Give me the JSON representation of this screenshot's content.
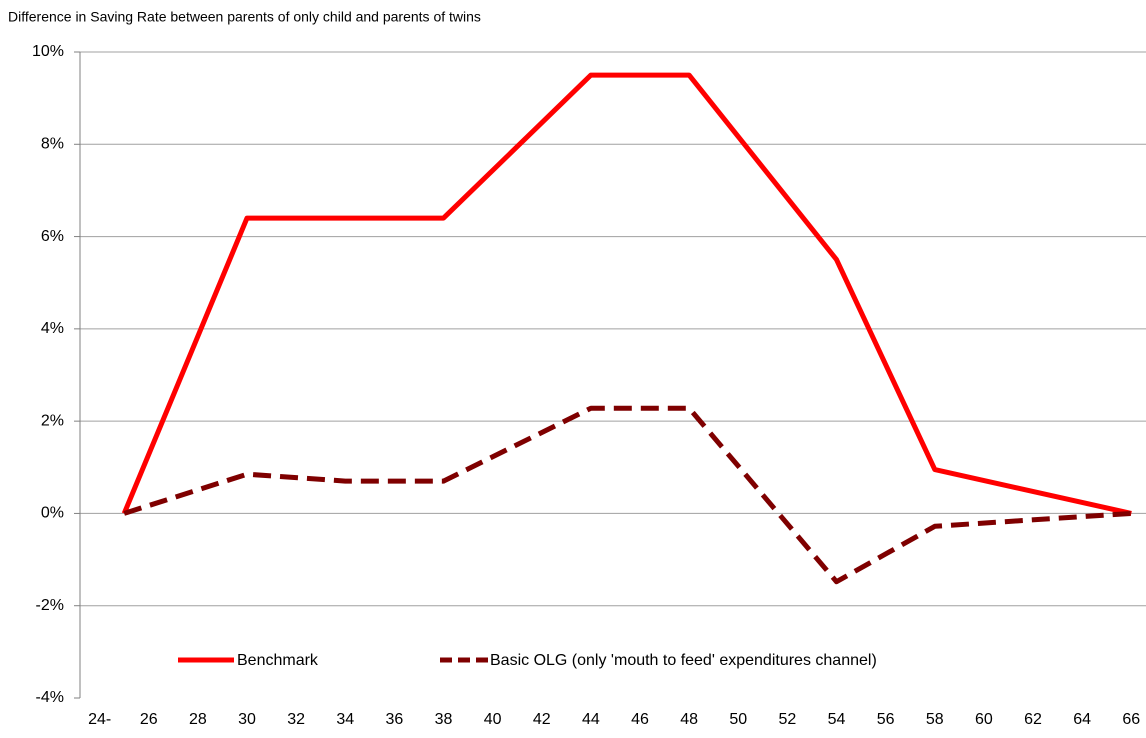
{
  "chart_data": {
    "type": "line",
    "title": "Difference in Saving Rate between parents of only child and parents of twins",
    "xlim": [
      23.2,
      66.6
    ],
    "xticks": [
      {
        "value": 24,
        "label": "24-"
      },
      26,
      28,
      30,
      32,
      34,
      36,
      38,
      40,
      42,
      44,
      46,
      48,
      50,
      52,
      54,
      56,
      58,
      60,
      62,
      64,
      66
    ],
    "ylim": [
      -4,
      10
    ],
    "yticks": [
      {
        "value": -4,
        "label": "-4%"
      },
      {
        "value": -2,
        "label": "-2%"
      },
      {
        "value": 0,
        "label": "0%"
      },
      {
        "value": 2,
        "label": "2%"
      },
      {
        "value": 4,
        "label": "4%"
      },
      {
        "value": 6,
        "label": "6%"
      },
      {
        "value": 8,
        "label": "8%"
      },
      {
        "value": 10,
        "label": "10%"
      }
    ],
    "grid": true,
    "series": [
      {
        "name": "Benchmark",
        "color": "#ff0000",
        "dash": false,
        "x": [
          25,
          30,
          38,
          44,
          48,
          54,
          58,
          66
        ],
        "values": [
          0,
          6.4,
          6.4,
          9.5,
          9.5,
          5.5,
          0.95,
          0
        ]
      },
      {
        "name": "Basic OLG (only 'mouth to feed' expenditures channel)",
        "color": "#7f0000",
        "dash": true,
        "x": [
          25,
          30,
          34,
          38,
          44,
          48,
          54,
          58,
          66
        ],
        "values": [
          0,
          0.85,
          0.7,
          0.7,
          2.28,
          2.28,
          -1.48,
          -0.28,
          0
        ]
      }
    ]
  }
}
